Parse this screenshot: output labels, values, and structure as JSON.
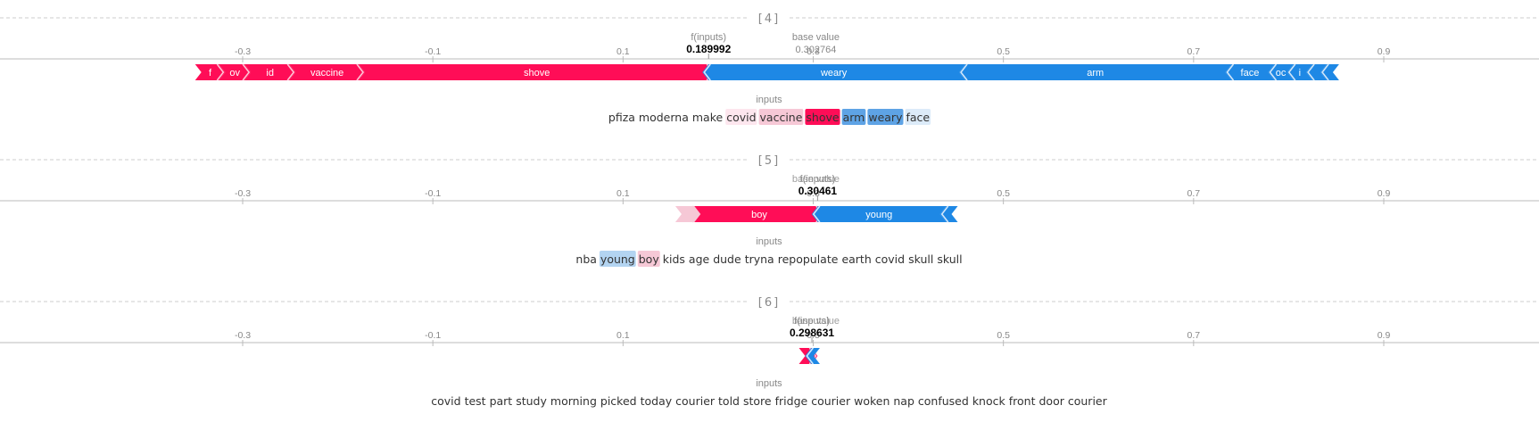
{
  "axis": {
    "ticks": [
      -0.3,
      -0.1,
      0.1,
      0.3,
      0.5,
      0.7,
      0.9
    ],
    "tick_labels": [
      "-0.3",
      "-0.1",
      "0.1",
      "0.3",
      "0.5",
      "0.7",
      "0.9"
    ]
  },
  "labels": {
    "f_inputs": "f(inputs)",
    "base_value": "base value",
    "inputs": "inputs"
  },
  "colors": {
    "positive": "#ff0d57",
    "negative": "#1e88e5",
    "pos_light": "#f6c8d6",
    "neg_light": "#b3d4f1"
  },
  "chart_data": [
    {
      "type": "force",
      "title": "[4]",
      "f_value": 0.189992,
      "f_value_label": "0.189992",
      "base_value": 0.302764,
      "base_value_label": "0.302764",
      "red_segments": [
        {
          "label": "f",
          "start": -0.35,
          "end": -0.325
        },
        {
          "label": "ov",
          "start": -0.325,
          "end": -0.298
        },
        {
          "label": "id",
          "start": -0.298,
          "end": -0.251
        },
        {
          "label": "vaccine",
          "start": -0.251,
          "end": -0.178
        },
        {
          "label": "shove",
          "start": -0.178,
          "end": 0.19
        }
      ],
      "blue_segments": [
        {
          "label": "weary",
          "start": 0.19,
          "end": 0.46
        },
        {
          "label": "arm",
          "start": 0.46,
          "end": 0.74
        },
        {
          "label": "face",
          "start": 0.74,
          "end": 0.785
        },
        {
          "label": "oc",
          "start": 0.785,
          "end": 0.805
        },
        {
          "label": "i",
          "start": 0.805,
          "end": 0.825
        },
        {
          "label": "",
          "start": 0.825,
          "end": 0.84
        },
        {
          "label": "",
          "start": 0.84,
          "end": 0.853
        }
      ],
      "tokens": [
        {
          "text": "pfiza",
          "hl": "none"
        },
        {
          "text": "moderna",
          "hl": "none"
        },
        {
          "text": "make",
          "hl": "none"
        },
        {
          "text": "covid",
          "hl": "pos_faint"
        },
        {
          "text": "vaccine",
          "hl": "pos_light"
        },
        {
          "text": "shove",
          "hl": "pos_strong"
        },
        {
          "text": "arm",
          "hl": "neg_med"
        },
        {
          "text": "weary",
          "hl": "neg_med"
        },
        {
          "text": "face",
          "hl": "neg_faint"
        }
      ]
    },
    {
      "type": "force",
      "title": "[5]",
      "f_value": 0.30461,
      "f_value_label": "0.30461",
      "base_value": 0.302764,
      "base_value_label": "",
      "red_segments": [
        {
          "label": "",
          "start": 0.155,
          "end": 0.175
        },
        {
          "label": "boy",
          "start": 0.175,
          "end": 0.305
        }
      ],
      "blue_segments": [
        {
          "label": "young",
          "start": 0.305,
          "end": 0.44
        },
        {
          "label": "",
          "start": 0.44,
          "end": 0.452
        }
      ],
      "tokens": [
        {
          "text": "nba",
          "hl": "none"
        },
        {
          "text": "young",
          "hl": "neg_light"
        },
        {
          "text": "boy",
          "hl": "pos_light"
        },
        {
          "text": "kids",
          "hl": "none"
        },
        {
          "text": "age",
          "hl": "none"
        },
        {
          "text": "dude",
          "hl": "none"
        },
        {
          "text": "tryna",
          "hl": "none"
        },
        {
          "text": "repopulate",
          "hl": "none"
        },
        {
          "text": "earth",
          "hl": "none"
        },
        {
          "text": "covid",
          "hl": "none"
        },
        {
          "text": "skull",
          "hl": "none"
        },
        {
          "text": "skull",
          "hl": "none"
        }
      ]
    },
    {
      "type": "force",
      "title": "[6]",
      "f_value": 0.298631,
      "f_value_label": "0.298631",
      "base_value": 0.302764,
      "base_value_label": "",
      "red_segments": [
        {
          "label": "",
          "start": 0.285,
          "end": 0.298
        }
      ],
      "blue_segments": [
        {
          "label": "",
          "start": 0.298,
          "end": 0.307
        }
      ],
      "tokens": [
        {
          "text": "covid",
          "hl": "none"
        },
        {
          "text": "test",
          "hl": "none"
        },
        {
          "text": "part",
          "hl": "none"
        },
        {
          "text": "study",
          "hl": "none"
        },
        {
          "text": "morning",
          "hl": "none"
        },
        {
          "text": "picked",
          "hl": "none"
        },
        {
          "text": "today",
          "hl": "none"
        },
        {
          "text": "courier",
          "hl": "none"
        },
        {
          "text": "told",
          "hl": "none"
        },
        {
          "text": "store",
          "hl": "none"
        },
        {
          "text": "fridge",
          "hl": "none"
        },
        {
          "text": "courier",
          "hl": "none"
        },
        {
          "text": "woken",
          "hl": "none"
        },
        {
          "text": "nap",
          "hl": "none"
        },
        {
          "text": "confused",
          "hl": "none"
        },
        {
          "text": "knock",
          "hl": "none"
        },
        {
          "text": "front",
          "hl": "none"
        },
        {
          "text": "door",
          "hl": "none"
        },
        {
          "text": "courier",
          "hl": "none"
        }
      ]
    }
  ]
}
